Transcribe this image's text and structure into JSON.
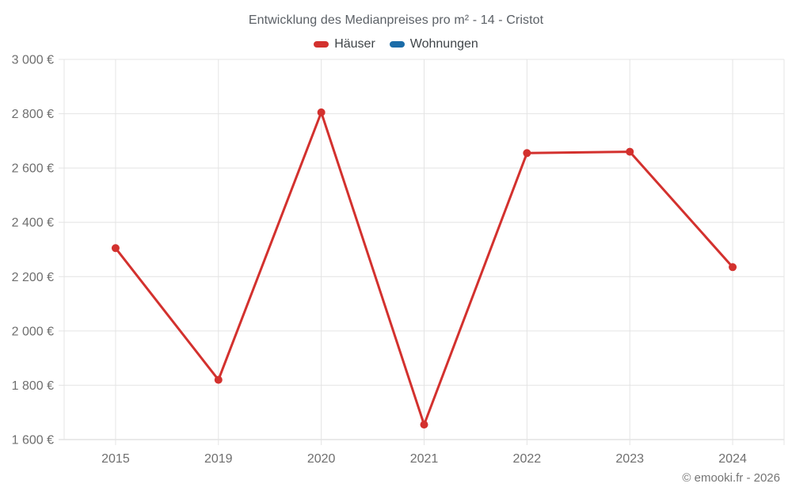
{
  "chart_data": {
    "type": "line",
    "title": "Entwicklung des Medianpreises pro m² - 14 - Cristot",
    "categories": [
      "2015",
      "2019",
      "2020",
      "2021",
      "2022",
      "2023",
      "2024"
    ],
    "series": [
      {
        "name": "Häuser",
        "color": "#d3312e",
        "values": [
          2305,
          1820,
          2805,
          1655,
          2655,
          2660,
          2235
        ]
      },
      {
        "name": "Wohnungen",
        "color": "#1b6ca8",
        "values": []
      }
    ],
    "ylim": [
      1600,
      3000
    ],
    "y_tick_step": 200,
    "y_tick_labels": [
      "1 600 €",
      "1 800 €",
      "2 000 €",
      "2 200 €",
      "2 400 €",
      "2 600 €",
      "2 800 €",
      "3 000 €"
    ],
    "xlabel": "",
    "ylabel": "",
    "grid": true,
    "legend_position": "top",
    "copyright": "© emooki.fr - 2026",
    "colors": {
      "grid": "#e4e4e4",
      "axis": "#d6d6d6",
      "tick_label": "#6f6f6f",
      "title": "#5b6066",
      "legend_label": "#404549",
      "copyright": "#757575",
      "background": "#ffffff"
    }
  }
}
